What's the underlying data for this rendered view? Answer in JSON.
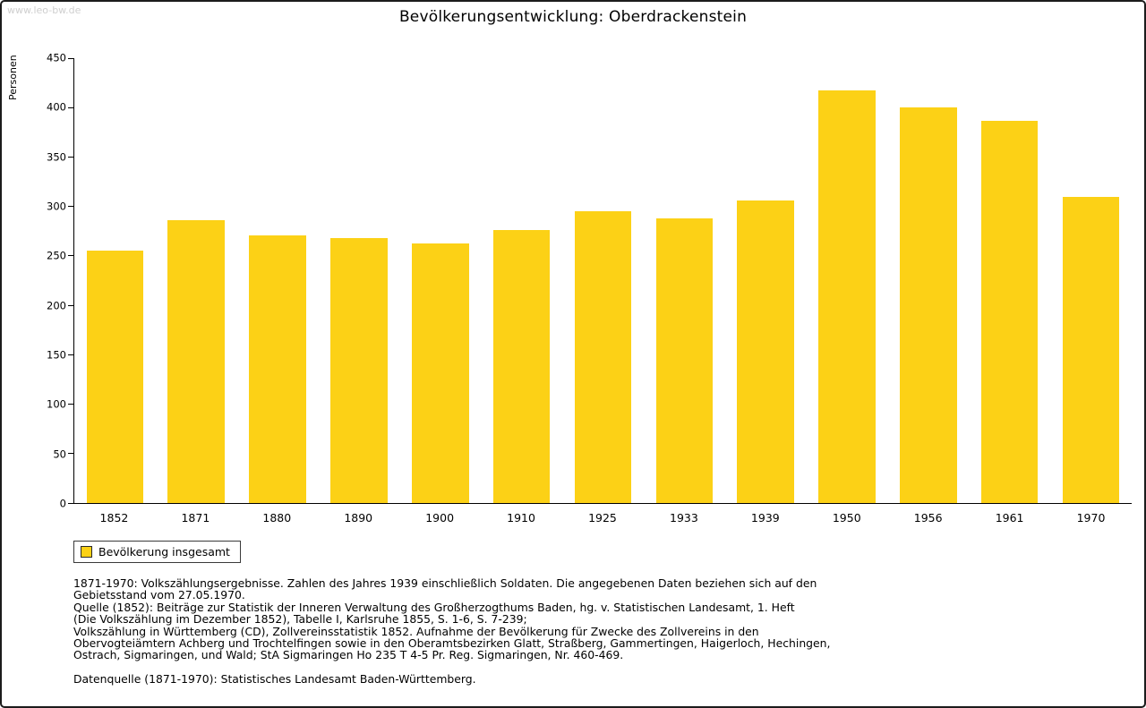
{
  "page": {
    "watermark": "www.leo-bw.de"
  },
  "chart_data": {
    "type": "bar",
    "title": "Bevölkerungsentwicklung: Oberdrackenstein",
    "xlabel": "",
    "ylabel": "Personen",
    "categories": [
      "1852",
      "1871",
      "1880",
      "1890",
      "1900",
      "1910",
      "1925",
      "1933",
      "1939",
      "1950",
      "1956",
      "1961",
      "1970"
    ],
    "values": [
      255,
      286,
      271,
      268,
      263,
      276,
      295,
      288,
      306,
      417,
      400,
      387,
      310
    ],
    "ylim": [
      0,
      450
    ],
    "ytick_step": 50,
    "grid": false,
    "bar_color": "#FCD116",
    "legend_position": "bottom-left",
    "legend": [
      {
        "label": "Bevölkerung insgesamt",
        "color": "#FCD116"
      }
    ]
  },
  "notes": {
    "lines": [
      "1871-1970: Volkszählungsergebnisse. Zahlen des Jahres 1939 einschließlich Soldaten. Die angegebenen Daten beziehen sich auf den",
      "Gebietsstand vom 27.05.1970.",
      "Quelle (1852): Beiträge zur Statistik der Inneren Verwaltung des Großherzogthums Baden, hg. v. Statistischen Landesamt, 1. Heft",
      "(Die Volkszählung im Dezember 1852), Tabelle I, Karlsruhe 1855, S. 1-6, S. 7-239;",
      "Volkszählung in Württemberg (CD), Zollvereinsstatistik 1852. Aufnahme der Bevölkerung für Zwecke des Zollvereins in den",
      "Obervogteiämtern Achberg und Trochtelfingen sowie in den Oberamtsbezirken Glatt, Straßberg, Gammertingen, Haigerloch, Hechingen,",
      "Ostrach, Sigmaringen, und Wald; StA Sigmaringen Ho 235 T 4-5 Pr. Reg. Sigmaringen, Nr. 460-469."
    ],
    "datenquelle": "Datenquelle (1871-1970): Statistisches Landesamt Baden-Württemberg."
  }
}
